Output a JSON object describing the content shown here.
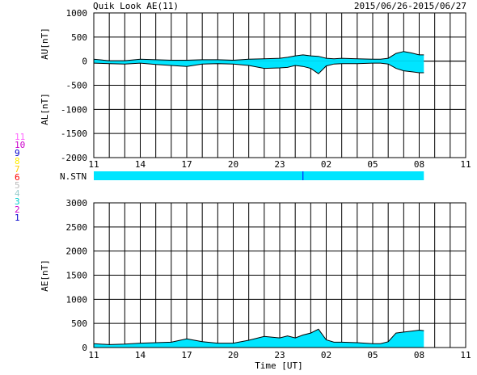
{
  "header": {
    "title": "Quik Look AE(11)",
    "date_range": "2015/06/26-2015/06/27"
  },
  "station_legend": {
    "items": [
      {
        "label": "11",
        "color": "#ff66ff"
      },
      {
        "label": "10",
        "color": "#cc00cc"
      },
      {
        "label": "9",
        "color": "#0000cc"
      },
      {
        "label": "8",
        "color": "#ffee00"
      },
      {
        "label": "7",
        "color": "#ffcc00"
      },
      {
        "label": "6",
        "color": "#ff0000"
      },
      {
        "label": "5",
        "color": "#bbbbbb"
      },
      {
        "label": "4",
        "color": "#99cccc"
      },
      {
        "label": "3",
        "color": "#00cccc"
      },
      {
        "label": "2",
        "color": "#cc00cc"
      },
      {
        "label": "1",
        "color": "#0000cc"
      }
    ]
  },
  "nstn": {
    "label": "N.STN",
    "fill_color": "#00e5ff",
    "marker_color": "#0000ff"
  },
  "colors": {
    "fill": "#00e5ff",
    "line": "#000000",
    "grid": "#000000"
  },
  "chart_data": [
    {
      "type": "area",
      "panel": "AU/AL",
      "ylabel_top": "AU[nT]",
      "ylabel_bottom": "AL[nT]",
      "ylim": [
        -2000,
        1000
      ],
      "yticks": [
        1000,
        500,
        0,
        -500,
        -1000,
        -1500,
        -2000
      ],
      "x_tick_labels": [
        "11",
        "14",
        "17",
        "20",
        "23",
        "02",
        "05",
        "08",
        "11"
      ],
      "xlim_hours": [
        11,
        35
      ],
      "data_end_hour": 32.3,
      "au": {
        "x": [
          11,
          12,
          13,
          14,
          15,
          16,
          17,
          18,
          19,
          20,
          21,
          22,
          23,
          23.5,
          24,
          24.5,
          25,
          25.5,
          26,
          26.5,
          27,
          28,
          29,
          29.5,
          30,
          30.5,
          31,
          31.5,
          32,
          32.3
        ],
        "values": [
          40,
          10,
          10,
          40,
          30,
          20,
          20,
          30,
          30,
          20,
          40,
          50,
          60,
          80,
          110,
          130,
          110,
          100,
          60,
          50,
          60,
          50,
          40,
          40,
          60,
          160,
          200,
          170,
          130,
          130
        ]
      },
      "al": {
        "x": [
          11,
          12,
          13,
          14,
          15,
          16,
          17,
          18,
          19,
          20,
          21,
          22,
          23,
          23.5,
          24,
          24.5,
          25,
          25.5,
          26,
          26.5,
          27,
          28,
          29,
          29.5,
          30,
          30.5,
          31,
          31.5,
          32,
          32.3
        ],
        "values": [
          -40,
          -50,
          -60,
          -40,
          -70,
          -90,
          -110,
          -60,
          -50,
          -60,
          -90,
          -150,
          -140,
          -130,
          -90,
          -110,
          -150,
          -260,
          -100,
          -60,
          -50,
          -50,
          -40,
          -40,
          -60,
          -150,
          -200,
          -220,
          -240,
          -240
        ]
      }
    },
    {
      "type": "area",
      "panel": "AE",
      "ylabel": "AE[nT]",
      "xlabel": "Time [UT]",
      "ylim": [
        0,
        3000
      ],
      "yticks": [
        3000,
        2500,
        2000,
        1500,
        1000,
        500,
        0
      ],
      "x_tick_labels": [
        "11",
        "14",
        "17",
        "20",
        "23",
        "02",
        "05",
        "08",
        "11"
      ],
      "xlim_hours": [
        11,
        35
      ],
      "data_end_hour": 32.3,
      "ae": {
        "x": [
          11,
          12,
          13,
          14,
          15,
          16,
          17,
          18,
          19,
          20,
          21,
          22,
          23,
          23.5,
          24,
          24.5,
          25,
          25.5,
          26,
          26.5,
          27,
          28,
          29,
          29.5,
          30,
          30.5,
          31,
          31.5,
          32,
          32.3
        ],
        "values": [
          80,
          60,
          70,
          90,
          100,
          110,
          180,
          120,
          90,
          90,
          150,
          230,
          200,
          240,
          200,
          260,
          300,
          380,
          160,
          110,
          110,
          100,
          80,
          80,
          120,
          300,
          320,
          340,
          360,
          350
        ]
      }
    }
  ]
}
